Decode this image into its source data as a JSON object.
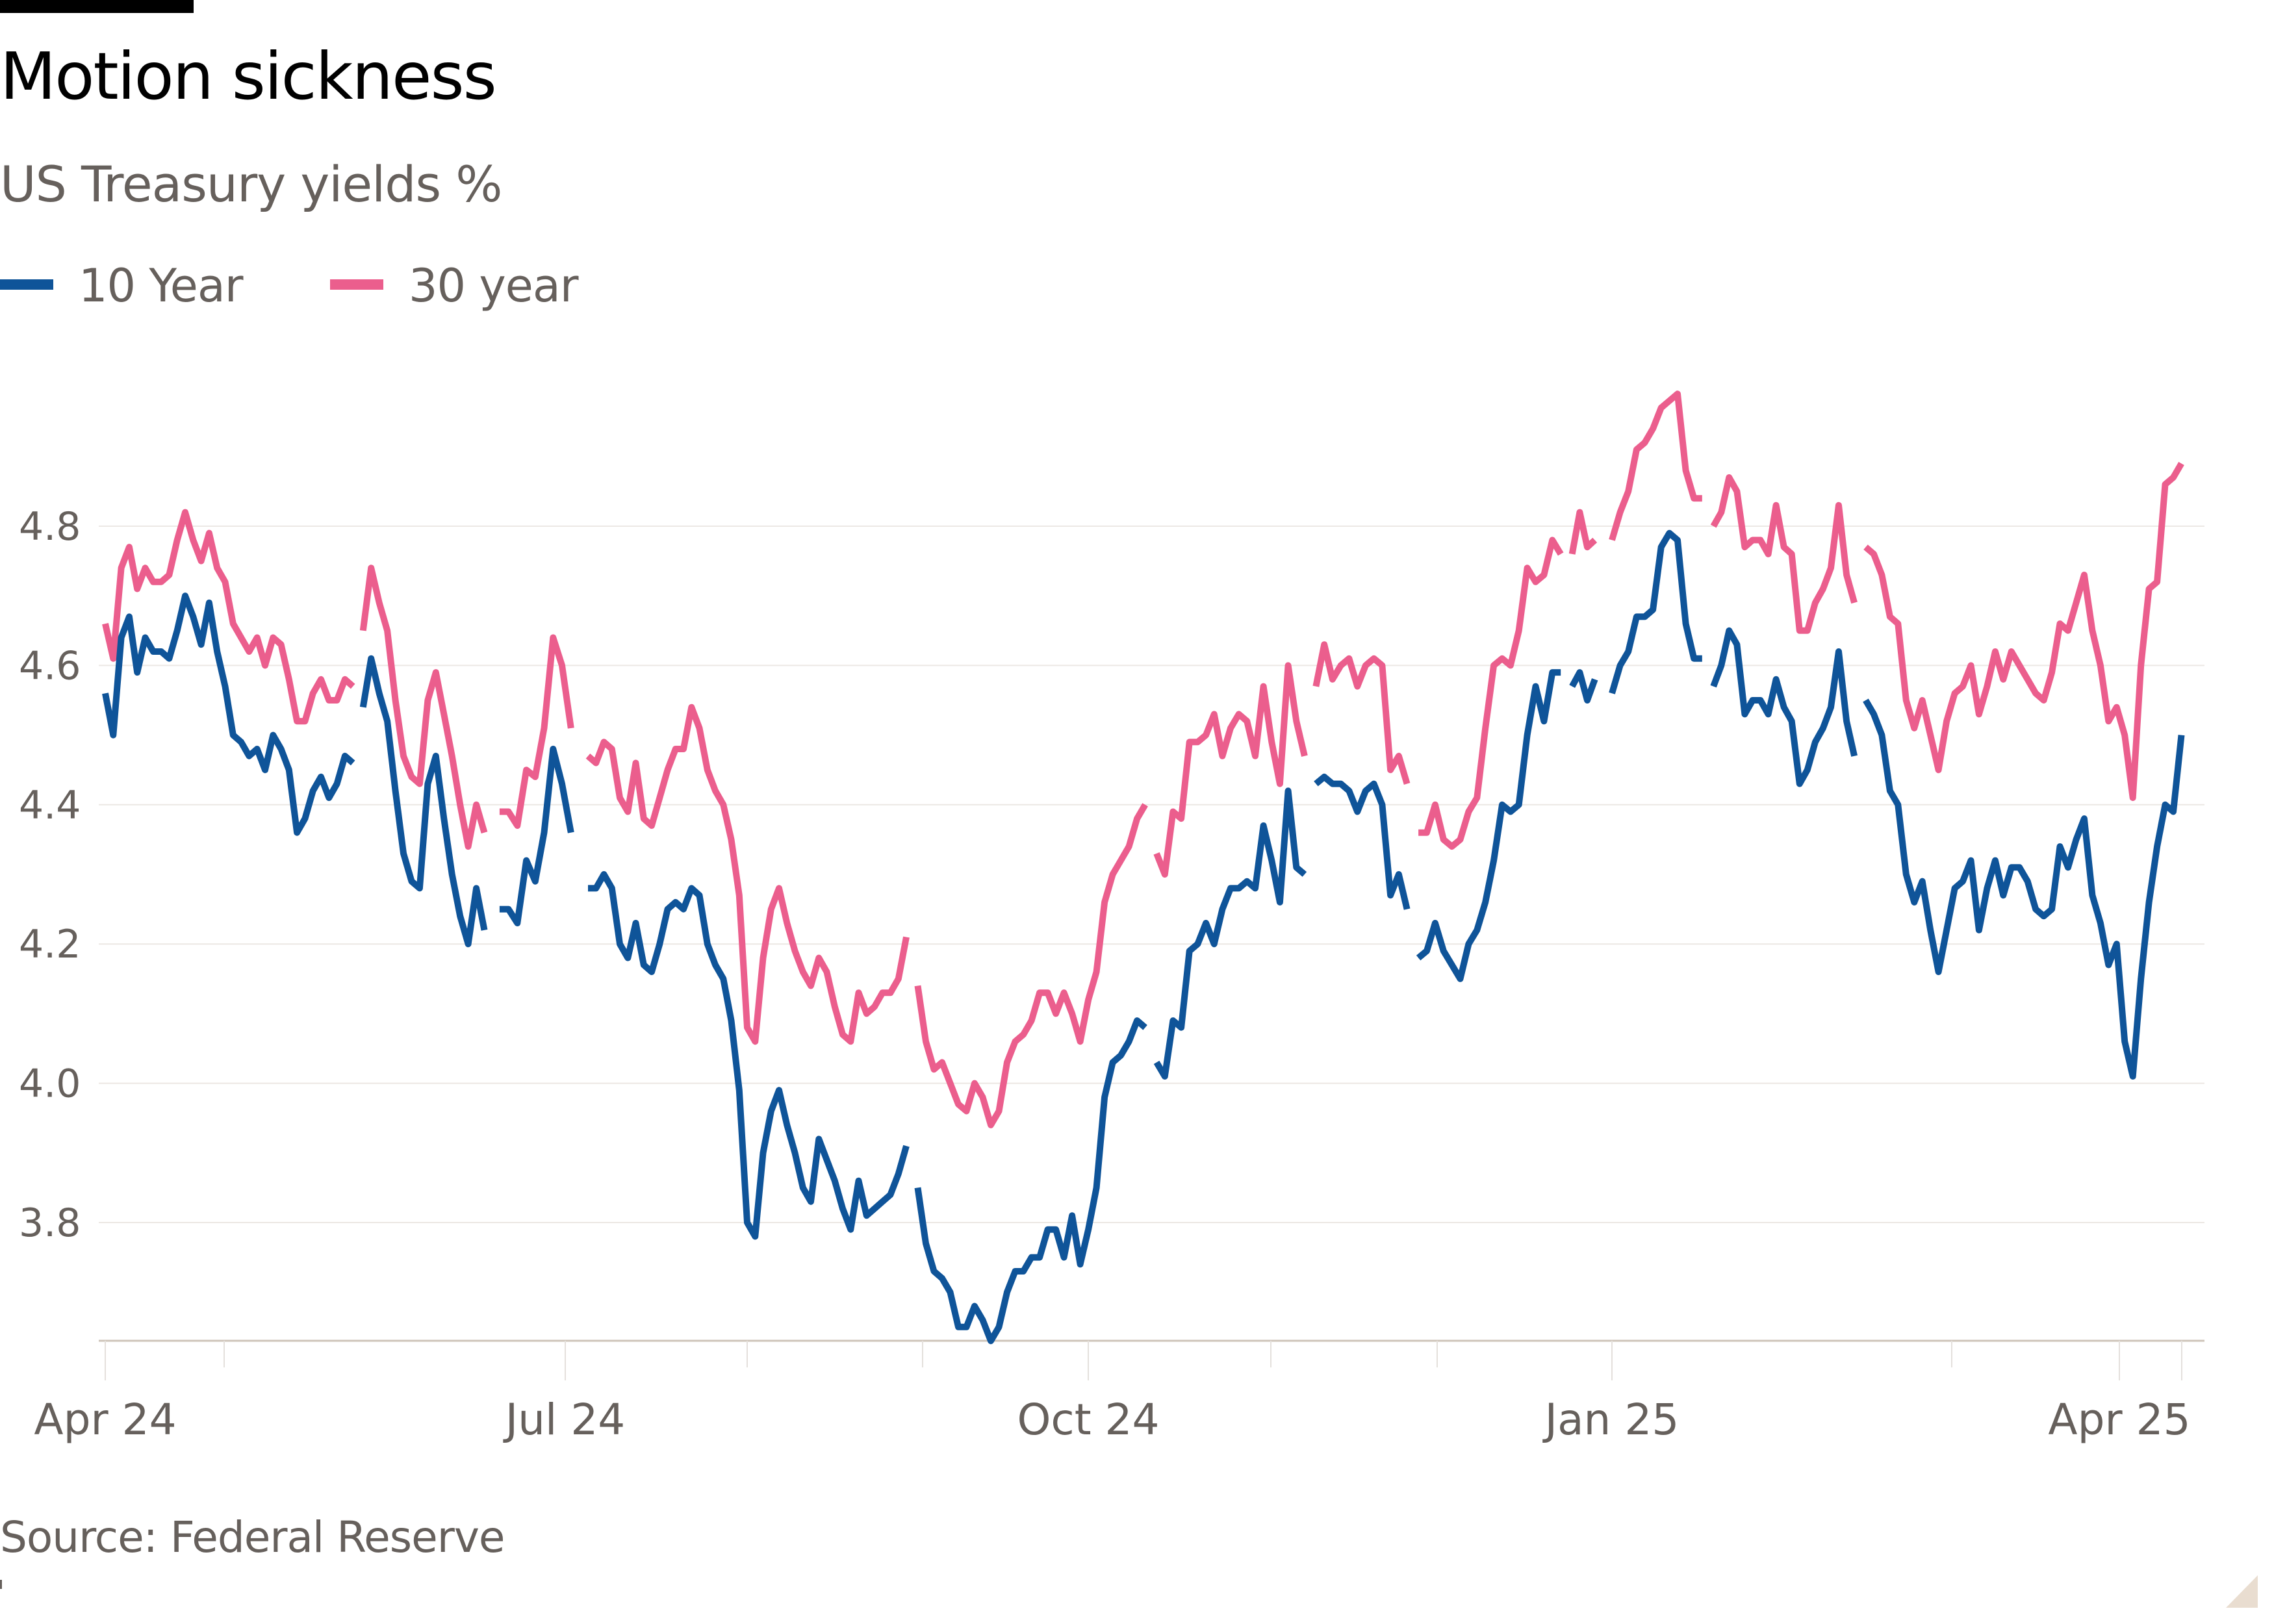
{
  "header": {
    "title": "Motion sickness",
    "subtitle": "US Treasury yields %"
  },
  "legend": [
    {
      "label": "10 Year",
      "color": "#0f5499"
    },
    {
      "label": "30 year",
      "color": "#eb5e8d"
    }
  ],
  "footer": {
    "source": "Source: Federal Reserve"
  },
  "chart_data": {
    "type": "line",
    "title": "Motion sickness",
    "subtitle": "US Treasury yields %",
    "xlabel": "",
    "ylabel": "",
    "ylim": [
      3.63,
      5.0
    ],
    "y_ticks": [
      3.8,
      4.0,
      4.2,
      4.4,
      4.6,
      4.8
    ],
    "y_tick_labels": [
      "3.8",
      "4.0",
      "4.2",
      "4.4",
      "4.6",
      "4.8"
    ],
    "x_ticks": [
      {
        "date": "2024-04-01",
        "label": "Apr 24"
      },
      {
        "date": "2024-07-01",
        "label": "Jul 24"
      },
      {
        "date": "2024-10-01",
        "label": "Oct 24"
      },
      {
        "date": "2025-01-01",
        "label": "Jan 25"
      },
      {
        "date": "2025-04-01",
        "label": "Apr 25"
      }
    ],
    "grid": "horizontal",
    "legend_position": "top-left",
    "series": [
      {
        "name": "10 Year",
        "color": "#0f5499",
        "segments": [
          {
            "start": "2024-04-01",
            "end": "2024-05-20",
            "values": [
              4.56,
              4.5,
              4.64,
              4.67,
              4.59,
              4.64,
              4.62,
              4.62,
              4.61,
              4.65,
              4.7,
              4.67,
              4.63,
              4.69,
              4.62,
              4.57,
              4.5,
              4.49,
              4.47,
              4.48,
              4.45,
              4.5,
              4.48,
              4.45,
              4.36,
              4.38,
              4.42,
              4.44,
              4.41,
              4.43,
              4.47,
              4.46
            ]
          },
          {
            "start": "2024-05-22",
            "end": "2024-06-15",
            "values": [
              4.54,
              4.61,
              4.56,
              4.52,
              4.42,
              4.33,
              4.29,
              4.28,
              4.43,
              4.47,
              4.38,
              4.3,
              4.24,
              4.2,
              4.28,
              4.22
            ]
          },
          {
            "start": "2024-06-18",
            "end": "2024-07-02",
            "values": [
              4.25,
              4.25,
              4.23,
              4.32,
              4.29,
              4.36,
              4.48,
              4.43,
              4.36
            ]
          },
          {
            "start": "2024-07-05",
            "end": "2024-08-30",
            "values": [
              4.28,
              4.28,
              4.3,
              4.28,
              4.2,
              4.18,
              4.23,
              4.17,
              4.16,
              4.2,
              4.25,
              4.26,
              4.25,
              4.28,
              4.27,
              4.2,
              4.17,
              4.15,
              4.09,
              3.99,
              3.8,
              3.78,
              3.9,
              3.96,
              3.99,
              3.94,
              3.9,
              3.85,
              3.83,
              3.92,
              3.89,
              3.86,
              3.82,
              3.79,
              3.86,
              3.81,
              3.82,
              3.83,
              3.84,
              3.87,
              3.91
            ]
          },
          {
            "start": "2024-09-01",
            "end": "2024-10-11",
            "values": [
              3.85,
              3.77,
              3.73,
              3.72,
              3.7,
              3.65,
              3.65,
              3.68,
              3.66,
              3.63,
              3.65,
              3.7,
              3.73,
              3.73,
              3.75,
              3.75,
              3.79,
              3.79,
              3.75,
              3.81,
              3.74,
              3.79,
              3.85,
              3.98,
              4.03,
              4.04,
              4.06,
              4.09,
              4.08
            ]
          },
          {
            "start": "2024-10-13",
            "end": "2024-11-08",
            "values": [
              4.03,
              4.01,
              4.09,
              4.08,
              4.19,
              4.2,
              4.23,
              4.2,
              4.25,
              4.28,
              4.28,
              4.29,
              4.28,
              4.37,
              4.32,
              4.26,
              4.42,
              4.31,
              4.3
            ]
          },
          {
            "start": "2024-11-10",
            "end": "2024-11-26",
            "values": [
              4.43,
              4.44,
              4.43,
              4.43,
              4.42,
              4.39,
              4.42,
              4.43,
              4.4,
              4.27,
              4.3,
              4.25
            ]
          },
          {
            "start": "2024-11-28",
            "end": "2024-12-23",
            "values": [
              4.18,
              4.19,
              4.23,
              4.19,
              4.17,
              4.15,
              4.2,
              4.22,
              4.26,
              4.32,
              4.4,
              4.39,
              4.4,
              4.5,
              4.57,
              4.52,
              4.59,
              4.59
            ]
          },
          {
            "start": "2024-12-25",
            "end": "2024-12-29",
            "values": [
              4.57,
              4.59,
              4.55,
              4.58
            ]
          },
          {
            "start": "2025-01-01",
            "end": "2025-01-17",
            "values": [
              4.56,
              4.6,
              4.62,
              4.67,
              4.67,
              4.68,
              4.77,
              4.79,
              4.78,
              4.66,
              4.61,
              4.61
            ]
          },
          {
            "start": "2025-01-19",
            "end": "2025-02-13",
            "values": [
              4.57,
              4.6,
              4.65,
              4.63,
              4.53,
              4.55,
              4.55,
              4.53,
              4.58,
              4.54,
              4.52,
              4.43,
              4.45,
              4.49,
              4.51,
              4.54,
              4.62,
              4.52,
              4.47
            ]
          },
          {
            "start": "2025-02-15",
            "end": "2025-04-12",
            "values": [
              4.55,
              4.53,
              4.5,
              4.42,
              4.4,
              4.3,
              4.26,
              4.29,
              4.22,
              4.16,
              4.22,
              4.28,
              4.29,
              4.32,
              4.22,
              4.28,
              4.32,
              4.27,
              4.31,
              4.31,
              4.29,
              4.25,
              4.24,
              4.25,
              4.34,
              4.31,
              4.35,
              4.38,
              4.27,
              4.23,
              4.17,
              4.2,
              4.06,
              4.01,
              4.15,
              4.26,
              4.34,
              4.4,
              4.39,
              4.5
            ]
          }
        ]
      },
      {
        "name": "30 year",
        "color": "#eb5e8d",
        "segments": [
          {
            "start": "2024-04-01",
            "end": "2024-05-20",
            "values": [
              4.66,
              4.61,
              4.74,
              4.77,
              4.71,
              4.74,
              4.72,
              4.72,
              4.73,
              4.78,
              4.82,
              4.78,
              4.75,
              4.79,
              4.74,
              4.72,
              4.66,
              4.64,
              4.62,
              4.64,
              4.6,
              4.64,
              4.63,
              4.58,
              4.52,
              4.52,
              4.56,
              4.58,
              4.55,
              4.55,
              4.58,
              4.57
            ]
          },
          {
            "start": "2024-05-22",
            "end": "2024-06-15",
            "values": [
              4.65,
              4.74,
              4.69,
              4.65,
              4.55,
              4.47,
              4.44,
              4.43,
              4.55,
              4.59,
              4.53,
              4.47,
              4.4,
              4.34,
              4.4,
              4.36
            ]
          },
          {
            "start": "2024-06-18",
            "end": "2024-07-02",
            "values": [
              4.39,
              4.39,
              4.37,
              4.45,
              4.44,
              4.51,
              4.64,
              4.6,
              4.51
            ]
          },
          {
            "start": "2024-07-05",
            "end": "2024-08-30",
            "values": [
              4.47,
              4.46,
              4.49,
              4.48,
              4.41,
              4.39,
              4.46,
              4.38,
              4.37,
              4.41,
              4.45,
              4.48,
              4.48,
              4.54,
              4.51,
              4.45,
              4.42,
              4.4,
              4.35,
              4.27,
              4.08,
              4.06,
              4.18,
              4.25,
              4.28,
              4.23,
              4.19,
              4.16,
              4.14,
              4.18,
              4.16,
              4.11,
              4.07,
              4.06,
              4.13,
              4.1,
              4.11,
              4.13,
              4.13,
              4.15,
              4.21
            ]
          },
          {
            "start": "2024-09-01",
            "end": "2024-10-11",
            "values": [
              4.14,
              4.06,
              4.02,
              4.03,
              4.0,
              3.97,
              3.96,
              4.0,
              3.98,
              3.94,
              3.96,
              4.03,
              4.06,
              4.07,
              4.09,
              4.13,
              4.13,
              4.1,
              4.13,
              4.1,
              4.06,
              4.12,
              4.16,
              4.26,
              4.3,
              4.32,
              4.34,
              4.38,
              4.4
            ]
          },
          {
            "start": "2024-10-13",
            "end": "2024-11-08",
            "values": [
              4.33,
              4.3,
              4.39,
              4.38,
              4.49,
              4.49,
              4.5,
              4.53,
              4.47,
              4.51,
              4.53,
              4.52,
              4.47,
              4.57,
              4.49,
              4.43,
              4.6,
              4.52,
              4.47
            ]
          },
          {
            "start": "2024-11-10",
            "end": "2024-11-26",
            "values": [
              4.57,
              4.63,
              4.58,
              4.6,
              4.61,
              4.57,
              4.6,
              4.61,
              4.6,
              4.45,
              4.47,
              4.43
            ]
          },
          {
            "start": "2024-11-28",
            "end": "2024-12-23",
            "values": [
              4.36,
              4.36,
              4.4,
              4.35,
              4.34,
              4.35,
              4.39,
              4.41,
              4.51,
              4.6,
              4.61,
              4.6,
              4.65,
              4.74,
              4.72,
              4.73,
              4.78,
              4.76
            ]
          },
          {
            "start": "2024-12-25",
            "end": "2024-12-29",
            "values": [
              4.76,
              4.82,
              4.77,
              4.78
            ]
          },
          {
            "start": "2025-01-01",
            "end": "2025-01-17",
            "values": [
              4.78,
              4.82,
              4.85,
              4.91,
              4.92,
              4.94,
              4.97,
              4.98,
              4.99,
              4.88,
              4.84,
              4.84
            ]
          },
          {
            "start": "2025-01-19",
            "end": "2025-02-13",
            "values": [
              4.8,
              4.82,
              4.87,
              4.85,
              4.77,
              4.78,
              4.78,
              4.76,
              4.83,
              4.77,
              4.76,
              4.65,
              4.65,
              4.69,
              4.71,
              4.74,
              4.83,
              4.73,
              4.69
            ]
          },
          {
            "start": "2025-02-15",
            "end": "2025-04-12",
            "values": [
              4.77,
              4.76,
              4.73,
              4.67,
              4.66,
              4.55,
              4.51,
              4.55,
              4.5,
              4.45,
              4.52,
              4.56,
              4.57,
              4.6,
              4.53,
              4.57,
              4.62,
              4.58,
              4.62,
              4.6,
              4.58,
              4.56,
              4.55,
              4.59,
              4.66,
              4.65,
              4.69,
              4.73,
              4.65,
              4.6,
              4.52,
              4.54,
              4.5,
              4.41,
              4.6,
              4.71,
              4.72,
              4.86,
              4.87,
              4.89
            ]
          }
        ]
      }
    ]
  }
}
